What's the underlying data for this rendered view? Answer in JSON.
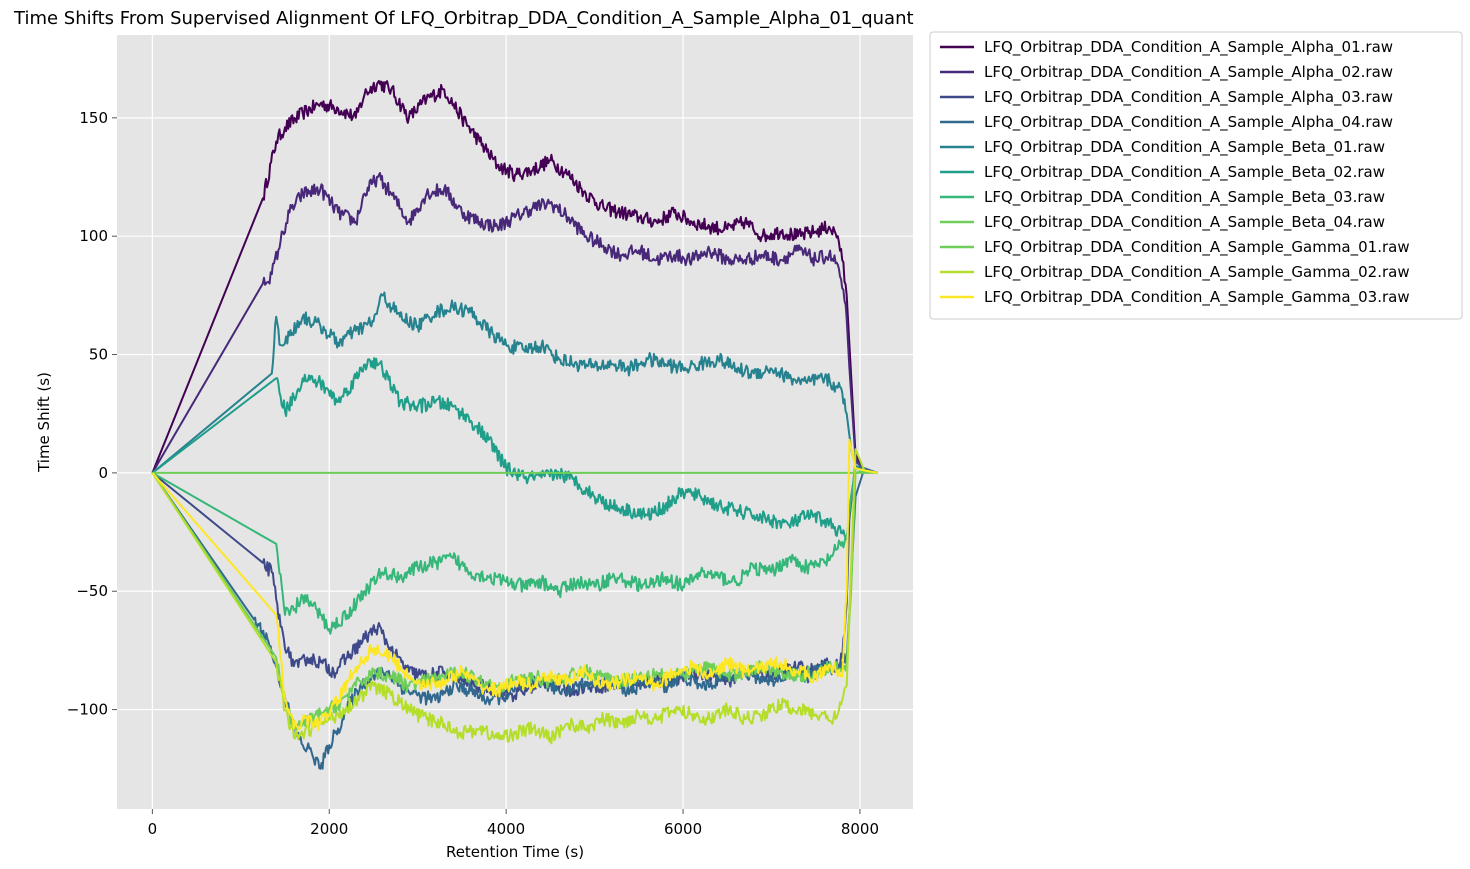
{
  "chart_data": {
    "type": "line",
    "title": "Time Shifts From Supervised Alignment Of LFQ_Orbitrap_DDA_Condition_A_Sample_Alpha_01_quant",
    "xlabel": "Retention Time (s)",
    "ylabel": "Time Shift (s)",
    "xlim": [
      -400,
      8600
    ],
    "ylim": [
      -142,
      185
    ],
    "xticks": [
      0,
      2000,
      4000,
      6000,
      8000
    ],
    "yticks": [
      150,
      100,
      50,
      0,
      -50,
      -100
    ],
    "ytick_labels": [
      "150",
      "100",
      "50",
      "0",
      "−50",
      "−100"
    ],
    "grid": true,
    "legend_position": "outside-top-right",
    "series": [
      {
        "name": "LFQ_Orbitrap_DDA_Condition_A_Sample_Alpha_01.raw",
        "color": "#440154",
        "x": [
          0,
          1250,
          1400,
          1500,
          1700,
          1900,
          2100,
          2300,
          2400,
          2550,
          2700,
          2900,
          3100,
          3300,
          3500,
          3700,
          3900,
          4100,
          4300,
          4500,
          4700,
          4900,
          5100,
          5300,
          5500,
          5700,
          5900,
          6100,
          6300,
          6500,
          6700,
          6900,
          7100,
          7300,
          7500,
          7650,
          7750,
          7800,
          7850,
          7880,
          7950,
          8050,
          8200
        ],
        "y": [
          0,
          116,
          140,
          146,
          152,
          156,
          154,
          150,
          160,
          165,
          162,
          150,
          158,
          162,
          150,
          140,
          130,
          126,
          128,
          132,
          126,
          118,
          112,
          110,
          108,
          106,
          110,
          106,
          104,
          103,
          106,
          100,
          102,
          100,
          102,
          104,
          100,
          90,
          75,
          55,
          8,
          1,
          0
        ]
      },
      {
        "name": "LFQ_Orbitrap_DDA_Condition_A_Sample_Alpha_02.raw",
        "color": "#482878",
        "x": [
          0,
          1250,
          1350,
          1450,
          1550,
          1700,
          1900,
          2100,
          2300,
          2400,
          2550,
          2700,
          2900,
          3100,
          3300,
          3500,
          3700,
          3900,
          4100,
          4300,
          4500,
          4700,
          4900,
          5100,
          5300,
          5500,
          5700,
          5900,
          6100,
          6300,
          6500,
          6700,
          6900,
          7100,
          7300,
          7500,
          7650,
          7750,
          7800,
          7850,
          7880,
          7950,
          8050,
          8200
        ],
        "y": [
          0,
          80,
          84,
          98,
          110,
          118,
          120,
          110,
          106,
          118,
          125,
          118,
          106,
          118,
          120,
          110,
          106,
          104,
          108,
          112,
          114,
          108,
          100,
          96,
          92,
          94,
          90,
          92,
          90,
          94,
          90,
          90,
          92,
          90,
          94,
          90,
          92,
          88,
          78,
          65,
          45,
          6,
          1,
          0
        ]
      },
      {
        "name": "LFQ_Orbitrap_DDA_Condition_A_Sample_Alpha_03.raw",
        "color": "#3e4989",
        "x": [
          0,
          1250,
          1350,
          1450,
          1550,
          1650,
          1750,
          1900,
          2050,
          2200,
          2400,
          2550,
          2700,
          2900,
          3100,
          3300,
          3500,
          3700,
          3900,
          4100,
          4300,
          4500,
          4700,
          4900,
          5100,
          5300,
          5500,
          5700,
          5900,
          6100,
          6300,
          6500,
          6700,
          6900,
          7100,
          7300,
          7500,
          7650,
          7750,
          7800,
          7850,
          7880,
          7950,
          8050,
          8200
        ],
        "y": [
          0,
          -38,
          -42,
          -65,
          -78,
          -82,
          -78,
          -80,
          -84,
          -78,
          -70,
          -65,
          -75,
          -84,
          -86,
          -84,
          -88,
          -90,
          -92,
          -94,
          -90,
          -88,
          -92,
          -90,
          -90,
          -88,
          -90,
          -86,
          -88,
          -84,
          -86,
          -88,
          -84,
          -86,
          -84,
          -82,
          -84,
          -80,
          -82,
          -78,
          -55,
          -20,
          5,
          1,
          0
        ]
      },
      {
        "name": "LFQ_Orbitrap_DDA_Condition_A_Sample_Alpha_04.raw",
        "color": "#31688e",
        "x": [
          0,
          1150,
          1300,
          1400,
          1500,
          1600,
          1700,
          1800,
          1900,
          2000,
          2100,
          2200,
          2350,
          2500,
          2650,
          2800,
          3000,
          3200,
          3400,
          3600,
          3800,
          4000,
          4200,
          4400,
          4600,
          4800,
          5000,
          5200,
          5400,
          5600,
          5800,
          6000,
          6200,
          6400,
          6600,
          6800,
          7000,
          7200,
          7400,
          7600,
          7750,
          7800,
          7850,
          7880,
          7950,
          8050,
          8200
        ],
        "y": [
          0,
          -62,
          -70,
          -82,
          -95,
          -108,
          -115,
          -118,
          -125,
          -115,
          -108,
          -100,
          -90,
          -86,
          -84,
          -90,
          -94,
          -96,
          -90,
          -92,
          -96,
          -94,
          -90,
          -88,
          -92,
          -90,
          -88,
          -90,
          -92,
          -88,
          -90,
          -86,
          -90,
          -88,
          -84,
          -86,
          -88,
          -84,
          -86,
          -82,
          -84,
          -80,
          -78,
          -60,
          -10,
          2,
          0
        ]
      },
      {
        "name": "LFQ_Orbitrap_DDA_Condition_A_Sample_Beta_01.raw",
        "color": "#26828e",
        "x": [
          0,
          1350,
          1400,
          1450,
          1550,
          1700,
          1900,
          2100,
          2300,
          2500,
          2600,
          2800,
          3000,
          3200,
          3400,
          3600,
          3800,
          4000,
          4200,
          4400,
          4600,
          4800,
          5000,
          5200,
          5400,
          5600,
          5800,
          6000,
          6200,
          6400,
          6600,
          6800,
          7000,
          7200,
          7400,
          7600,
          7750,
          7800,
          7850,
          7900,
          7950,
          8050,
          8200
        ],
        "y": [
          0,
          42,
          66,
          54,
          58,
          66,
          62,
          55,
          60,
          64,
          75,
          66,
          62,
          68,
          70,
          68,
          60,
          54,
          52,
          54,
          48,
          46,
          45,
          46,
          44,
          48,
          46,
          44,
          46,
          48,
          44,
          42,
          44,
          40,
          38,
          40,
          36,
          34,
          25,
          10,
          3,
          1,
          0
        ]
      },
      {
        "name": "LFQ_Orbitrap_DDA_Condition_A_Sample_Beta_02.raw",
        "color": "#1f9e89",
        "x": [
          0,
          1400,
          1500,
          1600,
          1700,
          1900,
          2100,
          2300,
          2450,
          2600,
          2800,
          3000,
          3200,
          3400,
          3600,
          3800,
          4000,
          4200,
          4400,
          4600,
          4800,
          5000,
          5200,
          5400,
          5600,
          5800,
          6000,
          6200,
          6400,
          6600,
          6800,
          7000,
          7200,
          7400,
          7600,
          7750,
          7850,
          7900,
          7950,
          8050,
          8200
        ],
        "y": [
          0,
          40,
          26,
          32,
          40,
          38,
          30,
          40,
          48,
          44,
          30,
          28,
          30,
          28,
          22,
          14,
          2,
          -2,
          -2,
          0,
          -4,
          -10,
          -14,
          -16,
          -18,
          -14,
          -8,
          -10,
          -14,
          -16,
          -18,
          -20,
          -22,
          -18,
          -20,
          -24,
          -28,
          -10,
          2,
          1,
          0
        ]
      },
      {
        "name": "LFQ_Orbitrap_DDA_Condition_A_Sample_Beta_03.raw",
        "color": "#35b779",
        "x": [
          0,
          1400,
          1500,
          1600,
          1700,
          1800,
          1900,
          2000,
          2200,
          2400,
          2600,
          2800,
          3000,
          3200,
          3400,
          3600,
          3800,
          4000,
          4200,
          4400,
          4600,
          4800,
          5000,
          5200,
          5400,
          5600,
          5800,
          6000,
          6200,
          6400,
          6600,
          6800,
          7000,
          7200,
          7400,
          7600,
          7750,
          7850,
          7900,
          7950,
          8050,
          8200
        ],
        "y": [
          0,
          -30,
          -60,
          -58,
          -52,
          -56,
          -60,
          -66,
          -60,
          -50,
          -42,
          -44,
          -40,
          -38,
          -36,
          -42,
          -44,
          -46,
          -48,
          -46,
          -50,
          -46,
          -48,
          -44,
          -46,
          -48,
          -44,
          -48,
          -42,
          -44,
          -46,
          -40,
          -42,
          -36,
          -40,
          -38,
          -32,
          -28,
          -10,
          2,
          1,
          0
        ]
      },
      {
        "name": "LFQ_Orbitrap_DDA_Condition_A_Sample_Beta_04.raw",
        "color": "#6ece58",
        "x": [
          0,
          7800,
          7850,
          8200
        ],
        "y": [
          0,
          0,
          0,
          0
        ]
      },
      {
        "name": "LFQ_Orbitrap_DDA_Condition_A_Sample_Gamma_01.raw",
        "color": "#6ece58",
        "x": [
          0,
          1400,
          1500,
          1600,
          1700,
          1900,
          2100,
          2300,
          2500,
          2700,
          2900,
          3100,
          3300,
          3500,
          3700,
          3900,
          4100,
          4300,
          4500,
          4700,
          4900,
          5100,
          5300,
          5500,
          5700,
          5900,
          6100,
          6300,
          6500,
          6700,
          6900,
          7100,
          7300,
          7500,
          7700,
          7800,
          7850,
          7900,
          7950,
          8050,
          8200
        ],
        "y": [
          0,
          -78,
          -96,
          -108,
          -106,
          -102,
          -98,
          -90,
          -84,
          -86,
          -90,
          -88,
          -86,
          -84,
          -88,
          -90,
          -88,
          -86,
          -88,
          -86,
          -84,
          -86,
          -88,
          -86,
          -84,
          -86,
          -84,
          -82,
          -86,
          -84,
          -82,
          -84,
          -86,
          -84,
          -82,
          -84,
          -80,
          -50,
          0,
          1,
          0
        ]
      },
      {
        "name": "LFQ_Orbitrap_DDA_Condition_A_Sample_Gamma_02.raw",
        "color": "#b5de2b",
        "x": [
          0,
          1400,
          1500,
          1600,
          1700,
          1800,
          1900,
          2100,
          2300,
          2500,
          2700,
          2900,
          3100,
          3300,
          3500,
          3700,
          3900,
          4100,
          4300,
          4500,
          4700,
          4900,
          5100,
          5300,
          5500,
          5700,
          5900,
          6100,
          6300,
          6500,
          6700,
          6900,
          7100,
          7300,
          7500,
          7700,
          7800,
          7850,
          7900,
          7950,
          8050,
          8200
        ],
        "y": [
          0,
          -80,
          -100,
          -112,
          -110,
          -108,
          -106,
          -102,
          -96,
          -90,
          -94,
          -100,
          -104,
          -106,
          -110,
          -108,
          -112,
          -110,
          -108,
          -112,
          -106,
          -108,
          -104,
          -106,
          -102,
          -104,
          -100,
          -102,
          -104,
          -100,
          -104,
          -102,
          -98,
          -100,
          -102,
          -104,
          -96,
          -90,
          -40,
          10,
          1,
          0
        ]
      },
      {
        "name": "LFQ_Orbitrap_DDA_Condition_A_Sample_Gamma_03.raw",
        "color": "#fde725",
        "x": [
          0,
          1400,
          1500,
          1600,
          1700,
          1900,
          2100,
          2300,
          2500,
          2700,
          2900,
          3100,
          3300,
          3500,
          3700,
          3900,
          4100,
          4300,
          4500,
          4700,
          4900,
          5100,
          5300,
          5500,
          5700,
          5900,
          6100,
          6300,
          6500,
          6700,
          6900,
          7100,
          7300,
          7500,
          7700,
          7800,
          7850,
          7880,
          7950,
          8050,
          8200
        ],
        "y": [
          0,
          -60,
          -96,
          -108,
          -104,
          -106,
          -96,
          -82,
          -74,
          -78,
          -86,
          -90,
          -88,
          -84,
          -90,
          -92,
          -88,
          -90,
          -86,
          -88,
          -84,
          -90,
          -88,
          -86,
          -90,
          -84,
          -82,
          -86,
          -80,
          -84,
          -82,
          -80,
          -84,
          -86,
          -82,
          -86,
          -50,
          14,
          2,
          1,
          0
        ]
      }
    ]
  }
}
